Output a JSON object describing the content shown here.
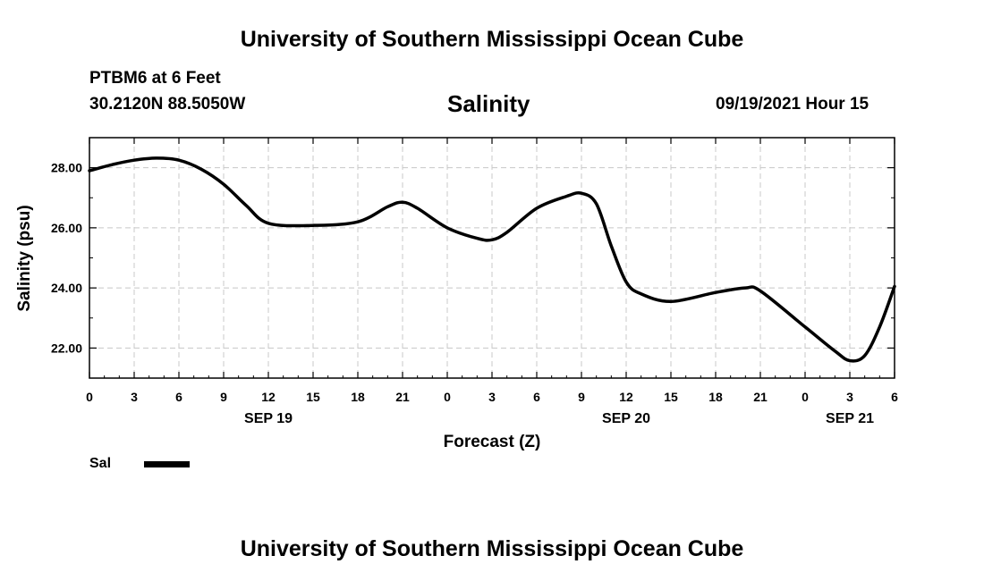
{
  "header": {
    "title": "University of Southern Mississippi Ocean Cube",
    "station": "PTBM6 at 6 Feet",
    "coords": "30.2120N  88.5050W",
    "variable": "Salinity",
    "datetime": "09/19/2021 Hour 15"
  },
  "footer": {
    "title": "University of Southern Mississippi Ocean Cube"
  },
  "legend": {
    "label": "Sal",
    "color": "#000000"
  },
  "chart_data": {
    "type": "line",
    "title": "Salinity",
    "xlabel": "Forecast (Z)",
    "ylabel": "Salinity (psu)",
    "x_unit": "forecast hour from SEP 19 00Z",
    "xlim": [
      0,
      54
    ],
    "ylim": [
      21.0,
      29.0
    ],
    "grid": true,
    "x_ticks": [
      {
        "x": 0,
        "label": "0"
      },
      {
        "x": 3,
        "label": "3"
      },
      {
        "x": 6,
        "label": "6"
      },
      {
        "x": 9,
        "label": "9"
      },
      {
        "x": 12,
        "label": "12"
      },
      {
        "x": 15,
        "label": "15"
      },
      {
        "x": 18,
        "label": "18"
      },
      {
        "x": 21,
        "label": "21"
      },
      {
        "x": 24,
        "label": "0"
      },
      {
        "x": 27,
        "label": "3"
      },
      {
        "x": 30,
        "label": "6"
      },
      {
        "x": 33,
        "label": "9"
      },
      {
        "x": 36,
        "label": "12"
      },
      {
        "x": 39,
        "label": "15"
      },
      {
        "x": 42,
        "label": "18"
      },
      {
        "x": 45,
        "label": "21"
      },
      {
        "x": 48,
        "label": "0"
      },
      {
        "x": 51,
        "label": "3"
      },
      {
        "x": 54,
        "label": "6"
      }
    ],
    "day_labels": [
      {
        "x": 12,
        "label": "SEP 19"
      },
      {
        "x": 36,
        "label": "SEP 20"
      },
      {
        "x": 51,
        "label": "SEP 21"
      }
    ],
    "y_ticks": [
      {
        "y": 22,
        "label": "22.00"
      },
      {
        "y": 24,
        "label": "24.00"
      },
      {
        "y": 26,
        "label": "26.00"
      },
      {
        "y": 28,
        "label": "28.00"
      }
    ],
    "series": [
      {
        "name": "Sal",
        "x": [
          0,
          1.5,
          3,
          4.5,
          6,
          7.5,
          9,
          10.5,
          12,
          15,
          18,
          20,
          21,
          22,
          24,
          26,
          27,
          28,
          30,
          32,
          33,
          34,
          35,
          36,
          37,
          39,
          42,
          44,
          45,
          48,
          50,
          51,
          52,
          53,
          54
        ],
        "values": [
          27.9,
          28.1,
          28.25,
          28.32,
          28.25,
          27.95,
          27.45,
          26.75,
          26.15,
          26.08,
          26.2,
          26.7,
          26.85,
          26.65,
          26.0,
          25.65,
          25.6,
          25.85,
          26.65,
          27.05,
          27.15,
          26.8,
          25.4,
          24.2,
          23.8,
          23.55,
          23.85,
          24.0,
          23.9,
          22.7,
          21.9,
          21.58,
          21.75,
          22.7,
          24.05
        ]
      }
    ]
  }
}
